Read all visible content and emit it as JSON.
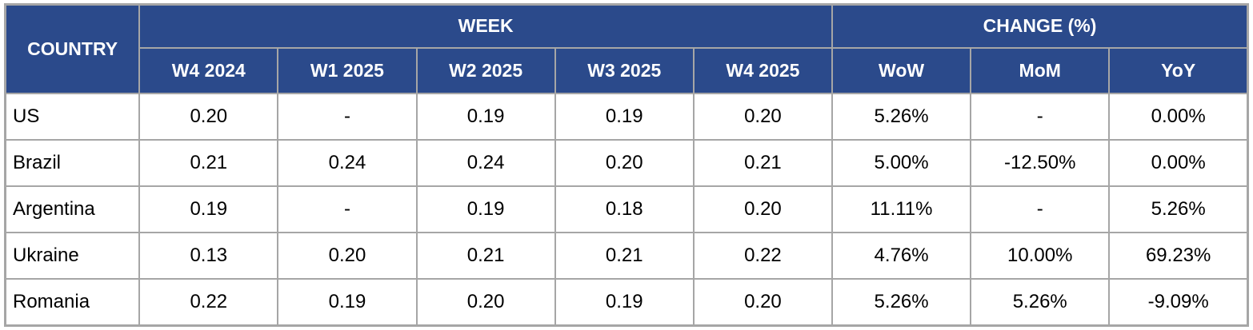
{
  "chart_data": {
    "type": "table",
    "header": {
      "country_label": "COUNTRY",
      "week_group_label": "WEEK",
      "change_group_label": "CHANGE (%)",
      "week_columns": [
        "W4 2024",
        "W1 2025",
        "W2 2025",
        "W3 2025",
        "W4 2025"
      ],
      "change_columns": [
        "WoW",
        "MoM",
        "YoY"
      ]
    },
    "rows": [
      {
        "country": "US",
        "weeks": [
          "0.20",
          "-",
          "0.19",
          "0.19",
          "0.20"
        ],
        "changes": [
          "5.26%",
          "-",
          "0.00%"
        ]
      },
      {
        "country": "Brazil",
        "weeks": [
          "0.21",
          "0.24",
          "0.24",
          "0.20",
          "0.21"
        ],
        "changes": [
          "5.00%",
          "-12.50%",
          "0.00%"
        ]
      },
      {
        "country": "Argentina",
        "weeks": [
          "0.19",
          "-",
          "0.19",
          "0.18",
          "0.20"
        ],
        "changes": [
          "11.11%",
          "-",
          "5.26%"
        ]
      },
      {
        "country": "Ukraine",
        "weeks": [
          "0.13",
          "0.20",
          "0.21",
          "0.21",
          "0.22"
        ],
        "changes": [
          "4.76%",
          "10.00%",
          "69.23%"
        ]
      },
      {
        "country": "Romania",
        "weeks": [
          "0.22",
          "0.19",
          "0.20",
          "0.19",
          "0.20"
        ],
        "changes": [
          "5.26%",
          "5.26%",
          "-9.09%"
        ]
      }
    ]
  },
  "colors": {
    "header_bg": "#2B4A8B",
    "header_text": "#FFFFFF",
    "border": "#A6A6A6",
    "body_bg": "#FFFFFF",
    "body_text": "#000000"
  }
}
